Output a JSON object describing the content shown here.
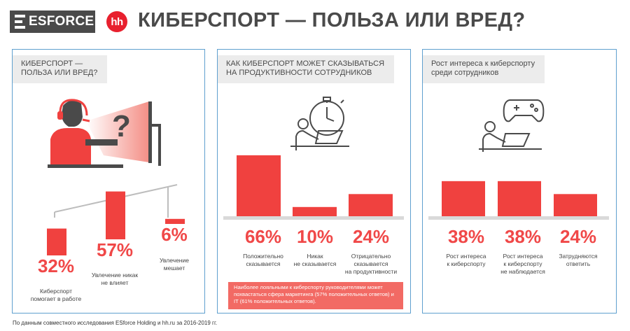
{
  "header": {
    "esforce_logo": "ESFORCE",
    "hh_logo": "hh",
    "title": "КИБЕРСПОРТ — ПОЛЬЗА ИЛИ ВРЕД?"
  },
  "panel1": {
    "title": "КИБЕРСПОРТ —\nПОЛЬЗА ИЛИ ВРЕД?",
    "question_mark": "?"
  },
  "panel2": {
    "title": "КАК КИБЕРСПОРТ МОЖЕТ СКАЗЫВАТЬСЯ\nНА ПРОДУКТИВНОСТИ СОТРУДНИКОВ",
    "note": "Наиболее лояльными к киберспорту руководителями может похвастаться сфера маркетинга (57% положительных ответов) и IT (61% положительных ответов)."
  },
  "panel3": {
    "title": "Рост интереса к киберспорту\nсреди сотрудников"
  },
  "chart_data": [
    {
      "type": "bar",
      "categories": [
        "Киберспорт\nпомогает в работе",
        "Увлечение никак\nне влияет",
        "Увлечение\nмешает"
      ],
      "values": [
        32,
        57,
        6
      ],
      "value_labels": [
        "32%",
        "57%",
        "6%"
      ],
      "ylim": [
        0,
        100
      ]
    },
    {
      "type": "bar",
      "categories": [
        "Положительно\nсказывается",
        "Никак\nне сказывается",
        "Отрицательно\nсказывается\nна продуктивности"
      ],
      "values": [
        66,
        10,
        24
      ],
      "value_labels": [
        "66%",
        "10%",
        "24%"
      ],
      "ylim": [
        0,
        100
      ]
    },
    {
      "type": "bar",
      "categories": [
        "Рост интереса\nк киберспорту",
        "Рост интереса\nк киберспорту\nне наблюдается",
        "Затрудняются\nответить"
      ],
      "values": [
        38,
        38,
        24
      ],
      "value_labels": [
        "38%",
        "38%",
        "24%"
      ],
      "ylim": [
        0,
        100
      ]
    }
  ],
  "footer": "По данным совместного исследования ESforce Holding и hh.ru за 2016-2019 гг.",
  "colors": {
    "accent": "#f0413f",
    "text": "#4a4a4a",
    "frame": "#5fa0cf",
    "title_bg": "#ececec",
    "note_bg": "#f26a64"
  }
}
